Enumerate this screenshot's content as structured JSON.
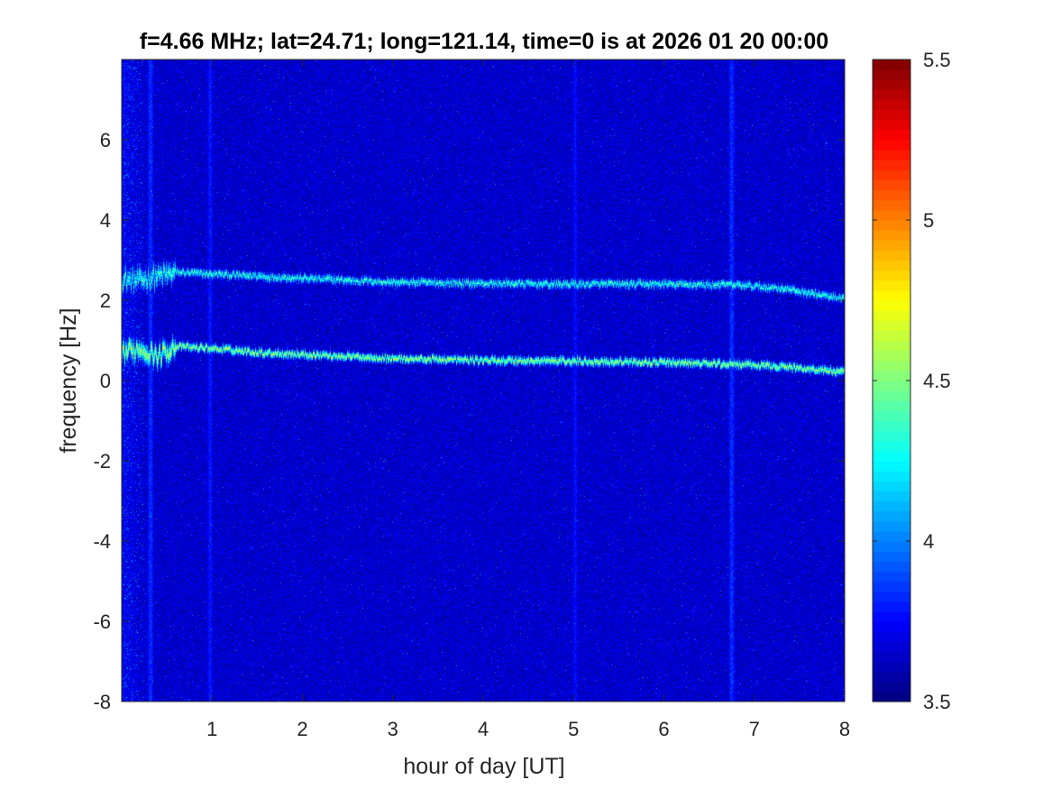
{
  "chart_data": {
    "type": "heatmap",
    "title": "f=4.66 MHz;  lat=24.71; long=121.14, time=0 is at 2026 01 20 00:00",
    "xlabel": "hour of day [UT]",
    "ylabel": "frequency [Hz]",
    "xlim": [
      0,
      8
    ],
    "ylim": [
      -8,
      8
    ],
    "xticks": [
      1,
      2,
      3,
      4,
      5,
      6,
      7,
      8
    ],
    "xtick_labels": [
      "1",
      "2",
      "3",
      "4",
      "5",
      "6",
      "7",
      "8"
    ],
    "yticks": [
      -8,
      -6,
      -4,
      -2,
      0,
      2,
      4,
      6
    ],
    "ytick_labels": [
      "-8",
      "-6",
      "-4",
      "-2",
      "0",
      "2",
      "4",
      "6"
    ],
    "colormap": "jet",
    "colorbar": {
      "range": [
        3.5,
        5.5
      ],
      "ticks": [
        3.5,
        4,
        4.5,
        5,
        5.5
      ],
      "tick_labels": [
        "3.5",
        "4",
        "4.5",
        "5",
        "5.5"
      ]
    },
    "background_level": 3.65,
    "series": [
      {
        "x": [
          0.0,
          0.2,
          0.4,
          0.6,
          1.0,
          1.5,
          2.0,
          3.0,
          4.0,
          5.0,
          6.0,
          6.8,
          7.3,
          7.8,
          8.0
        ],
        "y": [
          2.5,
          2.5,
          2.6,
          2.7,
          2.65,
          2.6,
          2.55,
          2.45,
          2.42,
          2.4,
          2.4,
          2.38,
          2.3,
          2.1,
          2.0
        ],
        "value": 4.35
      },
      {
        "x": [
          0.0,
          0.2,
          0.4,
          0.6,
          1.0,
          1.5,
          2.0,
          3.0,
          4.0,
          5.0,
          6.0,
          6.8,
          7.3,
          7.8,
          8.0
        ],
        "y": [
          0.7,
          0.8,
          0.6,
          0.85,
          0.8,
          0.7,
          0.65,
          0.55,
          0.5,
          0.48,
          0.45,
          0.4,
          0.35,
          0.25,
          0.2
        ],
        "value": 4.6
      }
    ],
    "vertical_streaks": [
      {
        "x": 0.32,
        "value": 3.85
      },
      {
        "x": 0.98,
        "value": 3.8
      },
      {
        "x": 5.02,
        "value": 3.78
      },
      {
        "x": 6.75,
        "value": 3.85
      }
    ]
  }
}
